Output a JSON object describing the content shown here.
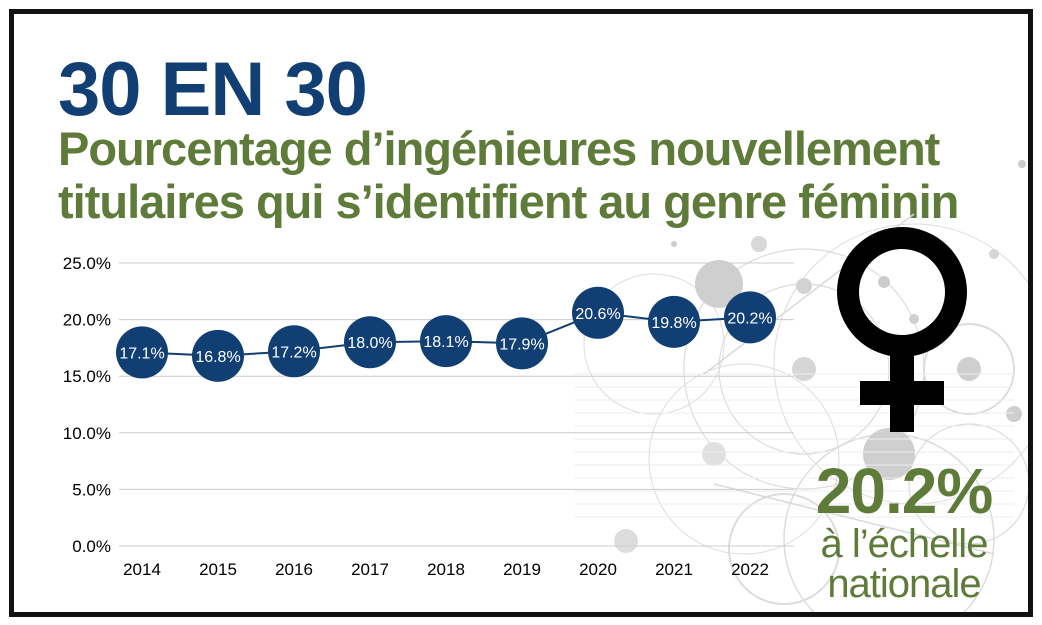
{
  "colors": {
    "title": "#123f73",
    "subtitle": "#5f7b39",
    "marker": "#123f73",
    "line": "#123f73",
    "grid": "#cccccc",
    "symbol": "#000000"
  },
  "title": "30 EN 30",
  "subtitle_lines": [
    "Pourcentage d’ingénieures nouvellement",
    "titulaires qui s’identifient au genre féminin"
  ],
  "highlight": {
    "value": "20.2%",
    "caption_lines": [
      "à l’échelle",
      "nationale"
    ]
  },
  "symbol_icon": "female-symbol-icon",
  "chart_data": {
    "type": "line",
    "categories": [
      "2014",
      "2015",
      "2016",
      "2017",
      "2018",
      "2019",
      "2020",
      "2021",
      "2022"
    ],
    "values": [
      17.1,
      16.8,
      17.2,
      18.0,
      18.1,
      17.9,
      20.6,
      19.8,
      20.2
    ],
    "data_labels": [
      "17.1%",
      "16.8%",
      "17.2%",
      "18.0%",
      "18.1%",
      "17.9%",
      "20.6%",
      "19.8%",
      "20.2%"
    ],
    "y_ticks": [
      "0.0%",
      "5.0%",
      "10.0%",
      "15.0%",
      "20.0%",
      "25.0%"
    ],
    "ylim": [
      0,
      25
    ],
    "grid": true,
    "legend": "none",
    "title": "",
    "xlabel": "",
    "ylabel": ""
  }
}
